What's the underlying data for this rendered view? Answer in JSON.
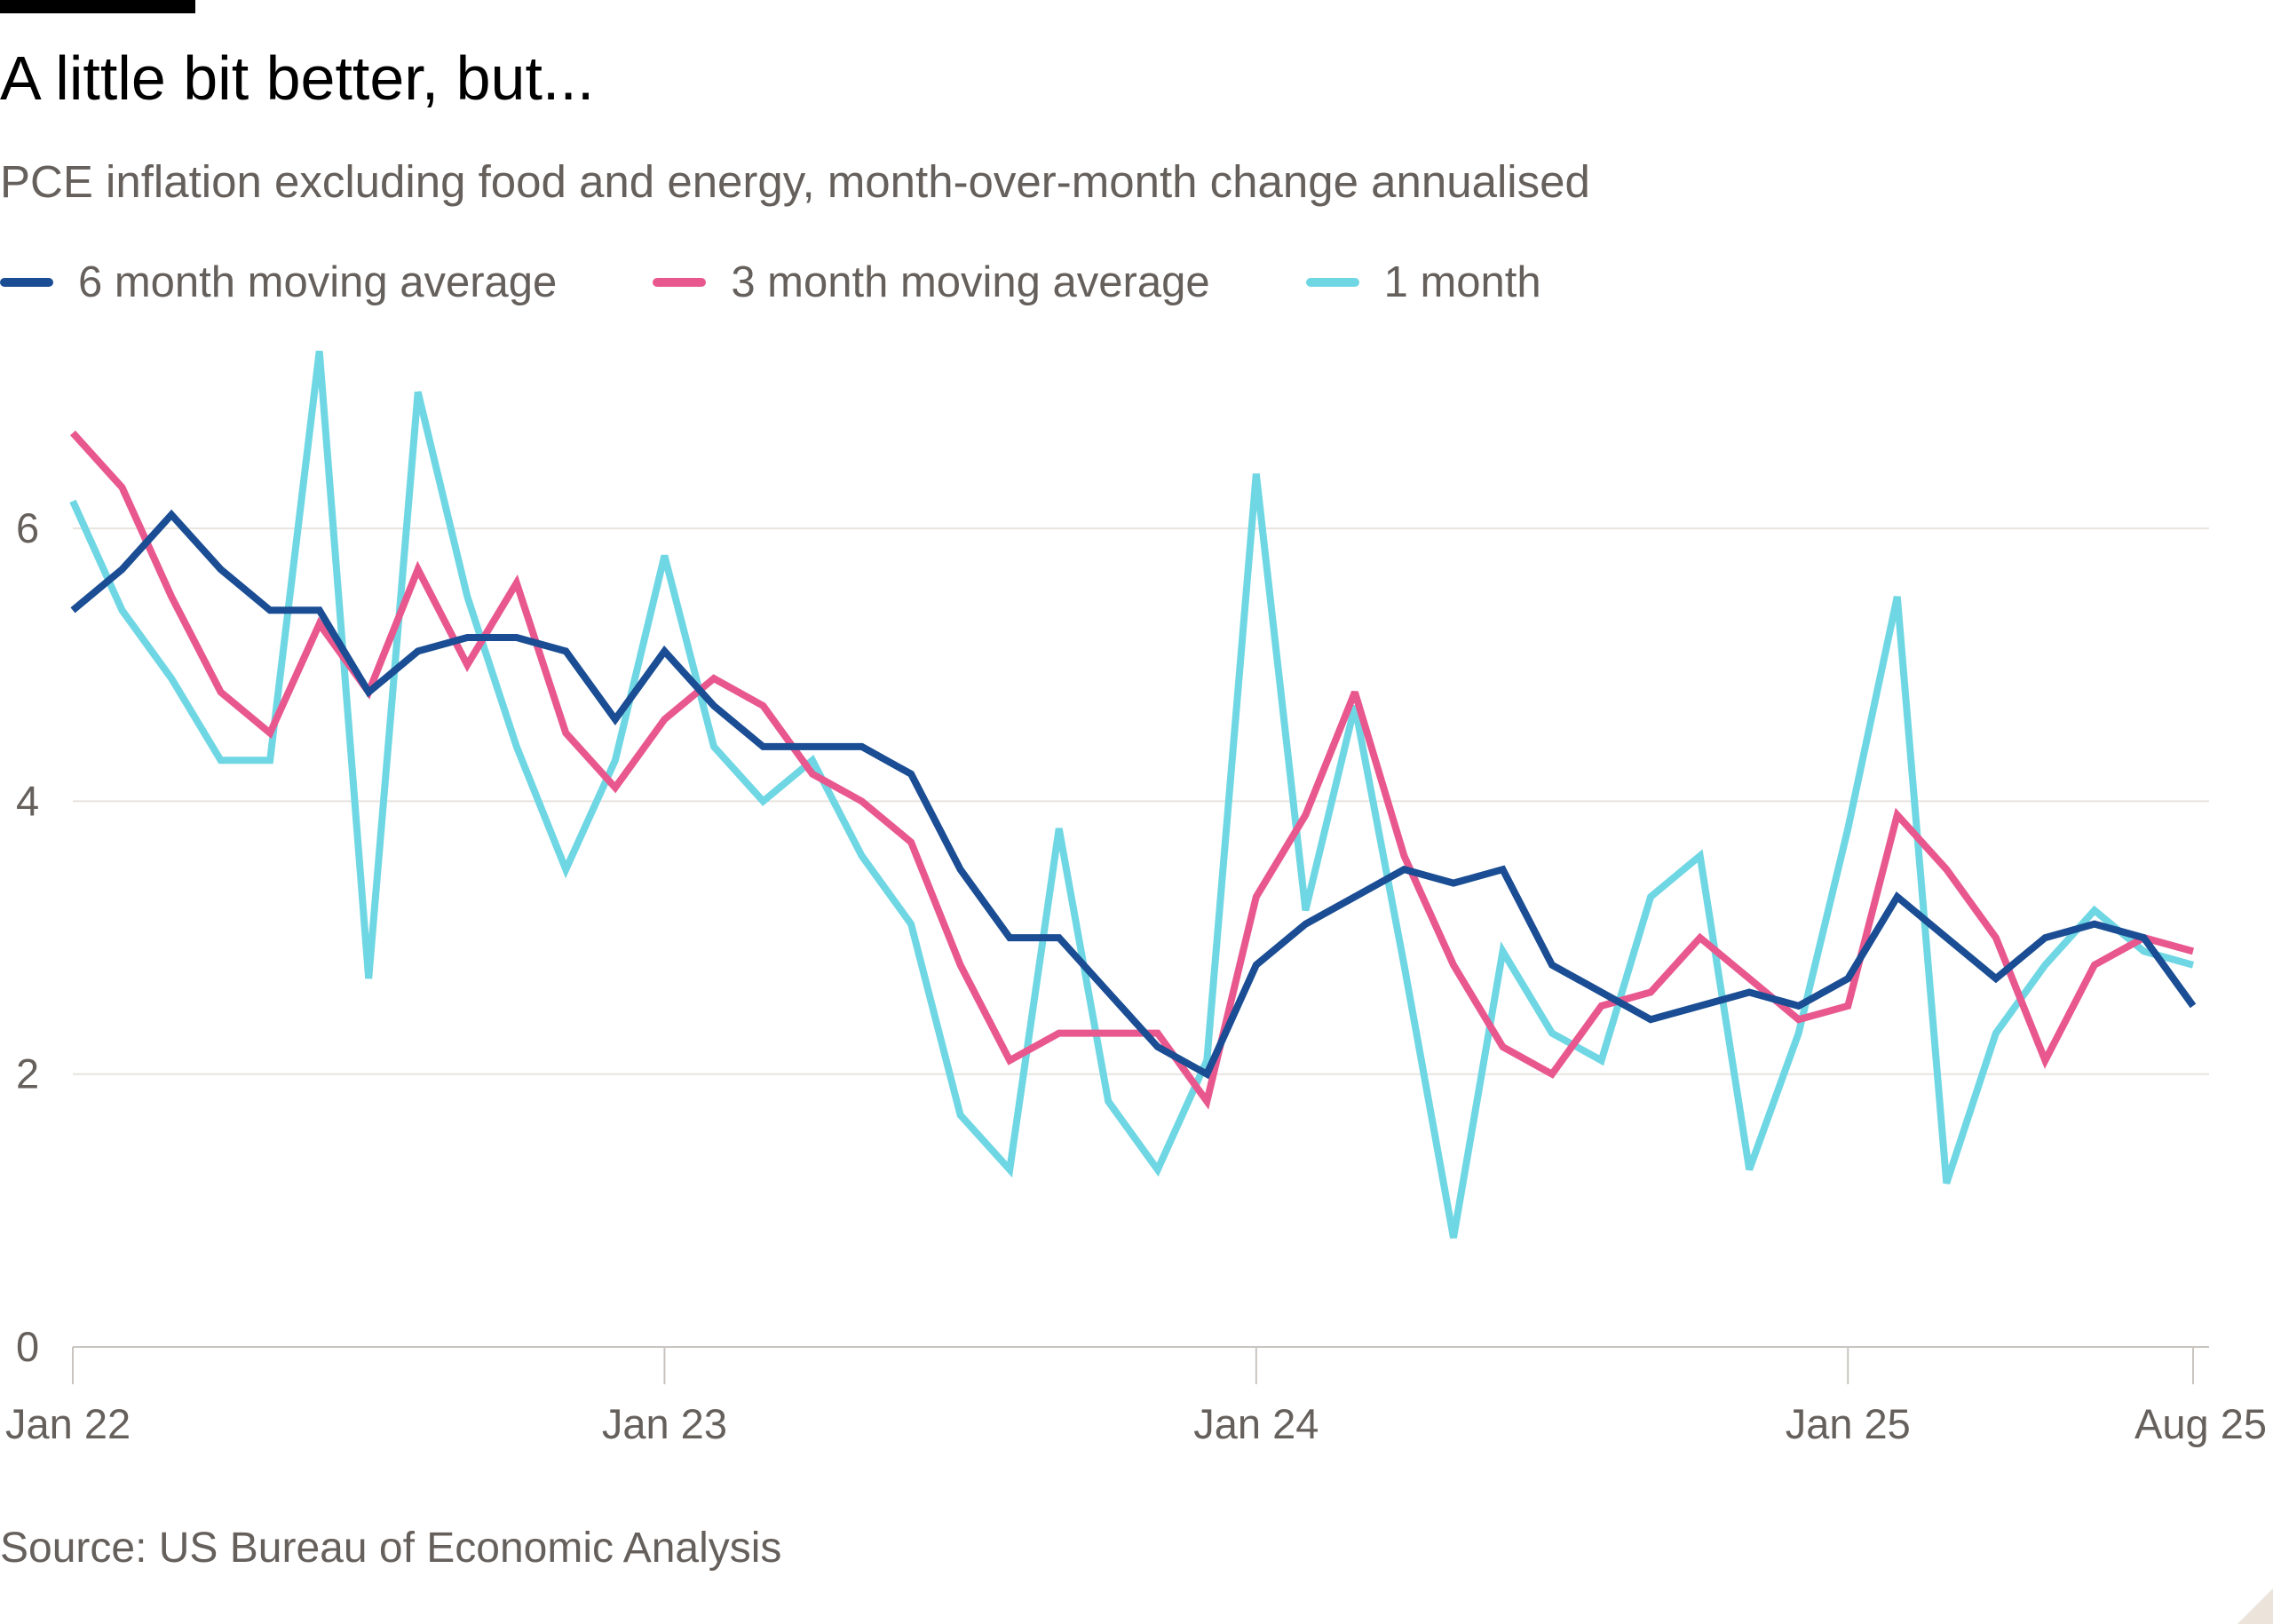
{
  "title": "A little bit better, but...",
  "subtitle": "PCE inflation excluding food and energy, month-over-month change annualised",
  "source": "Source: US Bureau of Economic Analysis",
  "colors": {
    "six_month": "#1a4d93",
    "three_month": "#e8588e",
    "one_month": "#6fd7e3",
    "grid": "#e8e4e0",
    "axis": "#c9c4bf",
    "text": "#66605c"
  },
  "chart_data": {
    "type": "line",
    "x": [
      "Jan 22",
      "Feb 22",
      "Mar 22",
      "Apr 22",
      "May 22",
      "Jun 22",
      "Jul 22",
      "Aug 22",
      "Sep 22",
      "Oct 22",
      "Nov 22",
      "Dec 22",
      "Jan 23",
      "Feb 23",
      "Mar 23",
      "Apr 23",
      "May 23",
      "Jun 23",
      "Jul 23",
      "Aug 23",
      "Sep 23",
      "Oct 23",
      "Nov 23",
      "Dec 23",
      "Jan 24",
      "Feb 24",
      "Mar 24",
      "Apr 24",
      "May 24",
      "Jun 24",
      "Jul 24",
      "Aug 24",
      "Sep 24",
      "Oct 24",
      "Nov 24",
      "Dec 24",
      "Jan 25",
      "Feb 25",
      "Mar 25",
      "Apr 25",
      "May 25",
      "Jun 25",
      "Jul 25",
      "Aug 25"
    ],
    "xticks": [
      "Jan 22",
      "Jan 23",
      "Jan 24",
      "Jan 25",
      "Aug 25"
    ],
    "ylim": [
      0,
      7.4
    ],
    "yticks": [
      0,
      2,
      4,
      6
    ],
    "grid": true,
    "legend_position": "top-left",
    "series": [
      {
        "name": "6 month moving average",
        "color": "#1a4d93",
        "values": [
          5.4,
          5.7,
          6.1,
          5.7,
          5.4,
          5.4,
          4.8,
          5.1,
          5.2,
          5.2,
          5.1,
          4.6,
          5.1,
          4.7,
          4.4,
          4.4,
          4.4,
          4.2,
          3.5,
          3.0,
          3.0,
          2.6,
          2.2,
          2.0,
          2.8,
          3.1,
          3.3,
          3.5,
          3.4,
          3.5,
          2.8,
          2.6,
          2.4,
          2.5,
          2.6,
          2.5,
          2.7,
          3.3,
          3.0,
          2.7,
          3.0,
          3.1,
          3.0,
          2.5
        ]
      },
      {
        "name": "3 month moving average",
        "color": "#e8588e",
        "values": [
          6.7,
          6.3,
          5.5,
          4.8,
          4.5,
          5.3,
          4.8,
          5.7,
          5.0,
          5.6,
          4.5,
          4.1,
          4.6,
          4.9,
          4.7,
          4.2,
          4.0,
          3.7,
          2.8,
          2.1,
          2.3,
          2.3,
          2.3,
          1.8,
          3.3,
          3.9,
          4.8,
          3.6,
          2.8,
          2.2,
          2.0,
          2.5,
          2.6,
          3.0,
          2.7,
          2.4,
          2.5,
          3.9,
          3.5,
          3.0,
          2.1,
          2.8,
          3.0,
          2.9
        ]
      },
      {
        "name": "1 month",
        "color": "#6fd7e3",
        "values": [
          6.2,
          5.4,
          4.9,
          4.3,
          4.3,
          7.3,
          2.7,
          7.0,
          5.5,
          4.4,
          3.5,
          4.3,
          5.8,
          4.4,
          4.0,
          4.3,
          3.6,
          3.1,
          1.7,
          1.3,
          3.8,
          1.8,
          1.3,
          2.1,
          6.4,
          3.2,
          4.7,
          2.8,
          0.8,
          2.9,
          2.3,
          2.1,
          3.3,
          3.6,
          1.3,
          2.3,
          3.8,
          5.5,
          1.2,
          2.3,
          2.8,
          3.2,
          2.9,
          2.8
        ]
      }
    ]
  }
}
